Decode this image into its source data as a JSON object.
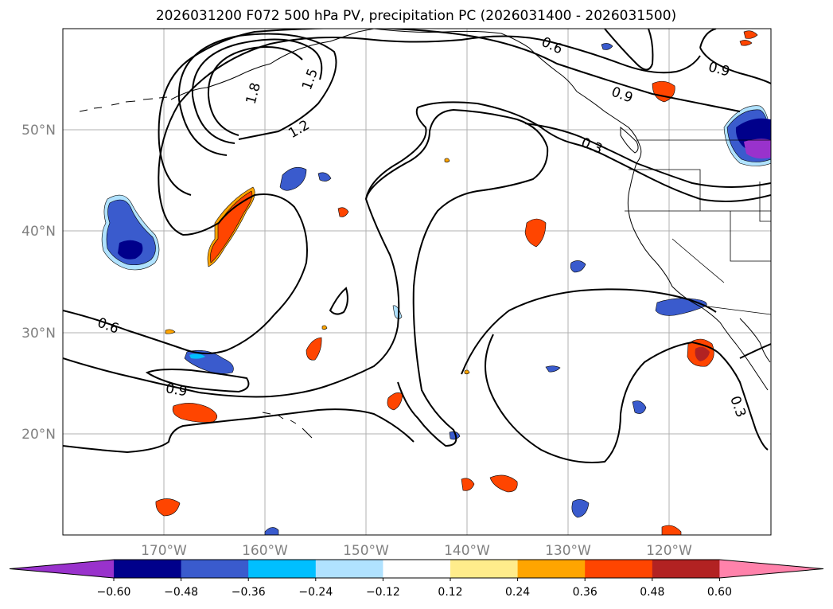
{
  "title": "2026031200 F072 500 hPa PV, precipitation PC (2026031400 - 2026031500)",
  "lat_labels": [
    "20°N",
    "30°N",
    "40°N",
    "50°N"
  ],
  "lon_labels": [
    "170°W",
    "160°W",
    "150°W",
    "140°W",
    "130°W",
    "120°W"
  ],
  "colorbar": {
    "colors": [
      "#9932cc",
      "#00008b",
      "#3a5bcd",
      "#00bfff",
      "#b0e2ff",
      "#ffffff",
      "#ffec8b",
      "#ffa500",
      "#ff4500",
      "#b22222",
      "#ff82ab"
    ],
    "tick_labels": [
      "−0.60",
      "−0.48",
      "−0.36",
      "−0.24",
      "−0.12",
      "0.12",
      "0.24",
      "0.36",
      "0.48",
      "0.60"
    ]
  },
  "contour_labels": [
    "1.8",
    "1.5",
    "1.2",
    "0.6",
    "0.9",
    "0.3",
    "0.6",
    "0.9",
    "0.3"
  ]
}
